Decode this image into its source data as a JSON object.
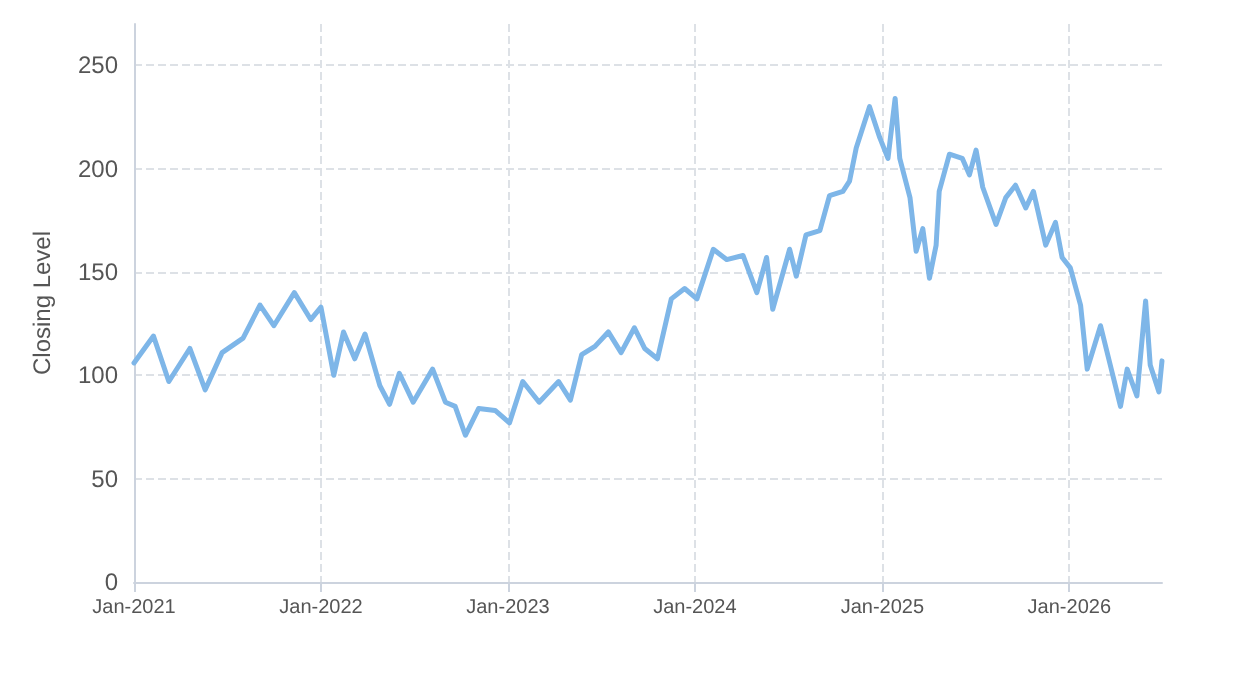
{
  "chart_data": {
    "type": "line",
    "ylabel": "Closing Level",
    "x": [
      "2021-01-01",
      "2021-02-08",
      "2021-03-10",
      "2021-04-20",
      "2021-05-20",
      "2021-06-22",
      "2021-08-02",
      "2021-09-04",
      "2021-10-01",
      "2021-11-10",
      "2021-12-12",
      "2022-01-01",
      "2022-01-26",
      "2022-02-14",
      "2022-03-08",
      "2022-03-28",
      "2022-04-26",
      "2022-05-15",
      "2022-06-03",
      "2022-06-30",
      "2022-08-07",
      "2022-09-01",
      "2022-09-20",
      "2022-10-10",
      "2022-11-05",
      "2022-12-07",
      "2023-01-04",
      "2023-01-30",
      "2023-03-03",
      "2023-04-10",
      "2023-05-03",
      "2023-05-25",
      "2023-06-20",
      "2023-07-16",
      "2023-08-10",
      "2023-09-05",
      "2023-09-25",
      "2023-10-20",
      "2023-11-16",
      "2023-12-12",
      "2024-01-05",
      "2024-02-06",
      "2024-03-03",
      "2024-04-04",
      "2024-05-01",
      "2024-05-20",
      "2024-06-01",
      "2024-07-04",
      "2024-07-17",
      "2024-08-05",
      "2024-09-01",
      "2024-09-20",
      "2024-10-16",
      "2024-10-29",
      "2024-11-11",
      "2024-12-07",
      "2024-12-27",
      "2025-01-12",
      "2025-01-26",
      "2025-02-04",
      "2025-02-24",
      "2025-03-08",
      "2025-03-21",
      "2025-04-03",
      "2025-04-16",
      "2025-04-22",
      "2025-05-12",
      "2025-06-06",
      "2025-06-20",
      "2025-07-03",
      "2025-07-16",
      "2025-08-11",
      "2025-08-30",
      "2025-09-18",
      "2025-10-08",
      "2025-10-23",
      "2025-11-16",
      "2025-12-05",
      "2025-12-18",
      "2026-01-03",
      "2026-01-23",
      "2026-02-05",
      "2026-03-03",
      "2026-03-22",
      "2026-04-11",
      "2026-04-24",
      "2026-05-13",
      "2026-05-30",
      "2026-06-08",
      "2026-06-25",
      "2026-07-01"
    ],
    "series": [
      {
        "color": "#7eb6e8",
        "values": [
          106,
          119,
          97,
          113,
          93,
          111,
          118,
          134,
          124,
          140,
          127,
          133,
          100,
          121,
          108,
          120,
          95,
          86,
          101,
          87,
          103,
          87,
          85,
          71,
          84,
          83,
          77,
          97,
          87,
          97,
          88,
          110,
          114,
          121,
          111,
          123,
          113,
          108,
          137,
          142,
          137,
          161,
          156,
          158,
          140,
          157,
          132,
          161,
          148,
          168,
          170,
          187,
          189,
          194,
          210,
          230,
          215,
          205,
          234,
          205,
          186,
          160,
          171,
          147,
          163,
          189,
          207,
          205,
          197,
          209,
          191,
          173,
          186,
          192,
          181,
          189,
          163,
          174,
          157,
          152,
          134,
          103,
          124,
          105,
          85,
          103,
          90,
          136,
          105,
          92,
          107
        ]
      }
    ],
    "xlim": [
      "2021-01-01",
      "2026-07-01"
    ],
    "xticks": [
      {
        "value": "2021-01-01",
        "label": "Jan-2021"
      },
      {
        "value": "2022-01-01",
        "label": "Jan-2022"
      },
      {
        "value": "2023-01-01",
        "label": "Jan-2023"
      },
      {
        "value": "2024-01-01",
        "label": "Jan-2024"
      },
      {
        "value": "2025-01-01",
        "label": "Jan-2025"
      },
      {
        "value": "2026-01-01",
        "label": "Jan-2026"
      }
    ],
    "ylim": [
      0,
      270
    ],
    "yticks": [
      0,
      50,
      100,
      150,
      200,
      250
    ],
    "grid": true,
    "marker": "none",
    "line_style": "solid"
  }
}
